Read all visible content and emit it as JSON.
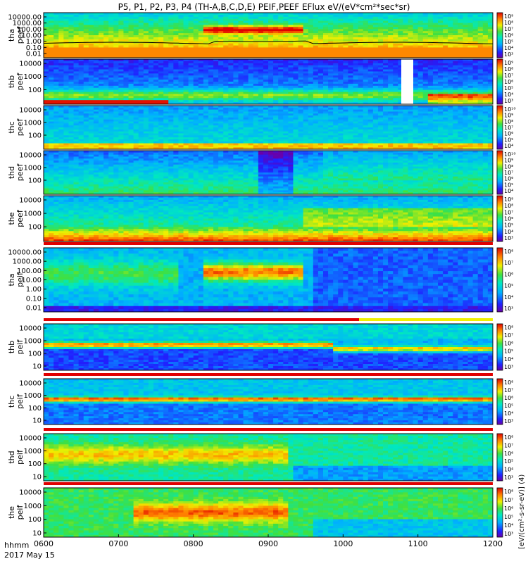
{
  "title": "P5, P1, P2, P3, P4 (TH-A,B,C,D,E) PEIF,PEEF EFlux eV/(eV*cm²*sec*sr)",
  "colorbar_label": "[eV/(cm²-s-sr-eV)] (4)",
  "time_label": "hhmm",
  "date_label": "2017 May 15",
  "time_ticks": [
    "0600",
    "0700",
    "0800",
    "0900",
    "1000",
    "1100",
    "1200"
  ],
  "chart_data": {
    "type": "heatmap",
    "x_range": [
      "06:00",
      "12:00"
    ],
    "panels": [
      {
        "name_line1": "tha",
        "name_line2": "peef",
        "yticks": [
          "10000.00",
          "1000.00",
          "100.00",
          "10.00",
          "1.00",
          "0.10",
          "0.01"
        ],
        "cbar_ticks": [
          "10⁹",
          "10⁸",
          "10⁷",
          "10⁶",
          "10⁵",
          "10⁴",
          "10³"
        ]
      },
      {
        "name_line1": "thb",
        "name_line2": "peef",
        "yticks": [
          "10000",
          "1000",
          "100"
        ],
        "cbar_ticks": [
          "10⁹",
          "10⁸",
          "10⁷",
          "10⁶",
          "10⁵",
          "10⁴",
          "10³"
        ]
      },
      {
        "name_line1": "thc",
        "name_line2": "peef",
        "yticks": [
          "10000",
          "1000",
          "100"
        ],
        "cbar_ticks": [
          "10¹⁰",
          "10⁹",
          "10⁸",
          "10⁷",
          "10⁶",
          "10⁵",
          "10⁴"
        ]
      },
      {
        "name_line1": "thd",
        "name_line2": "peef",
        "yticks": [
          "10000",
          "1000",
          "100"
        ],
        "cbar_ticks": [
          "10¹⁰",
          "10⁹",
          "10⁸",
          "10⁷",
          "10⁶",
          "10⁵",
          "10⁴"
        ]
      },
      {
        "name_line1": "the",
        "name_line2": "peef",
        "yticks": [
          "10000",
          "1000",
          "100"
        ],
        "cbar_ticks": [
          "10⁹",
          "10⁸",
          "10⁷",
          "10⁶",
          "10⁵",
          "10⁴",
          "10³"
        ]
      },
      {
        "name_line1": "tha",
        "name_line2": "peif",
        "yticks": [
          "10000.00",
          "1000.00",
          "100.00",
          "10.00",
          "1.00",
          "0.10",
          "0.01"
        ],
        "cbar_ticks": [
          "10⁸",
          "10⁷",
          "10⁶",
          "10⁵",
          "10⁴",
          "10³"
        ]
      },
      {
        "name_line1": "thb",
        "name_line2": "peif",
        "yticks": [
          "10000",
          "1000",
          "100",
          "10"
        ],
        "cbar_ticks": [
          "10⁸",
          "10⁷",
          "10⁶",
          "10⁵",
          "10⁴",
          "10³"
        ]
      },
      {
        "name_line1": "thc",
        "name_line2": "peif",
        "yticks": [
          "10000",
          "1000",
          "100",
          "10"
        ],
        "cbar_ticks": [
          "10⁸",
          "10⁷",
          "10⁶",
          "10⁵",
          "10⁴",
          "10³"
        ]
      },
      {
        "name_line1": "thd",
        "name_line2": "peif",
        "yticks": [
          "10000",
          "1000",
          "100",
          "10"
        ],
        "cbar_ticks": [
          "10⁸",
          "10⁷",
          "10⁶",
          "10⁵",
          "10⁴",
          "10³"
        ]
      },
      {
        "name_line1": "the",
        "name_line2": "peif",
        "yticks": [
          "10000",
          "1000",
          "100",
          "10"
        ],
        "cbar_ticks": [
          "10⁸",
          "10⁷",
          "10⁶",
          "10⁵",
          "10⁴",
          "10³"
        ]
      }
    ]
  }
}
